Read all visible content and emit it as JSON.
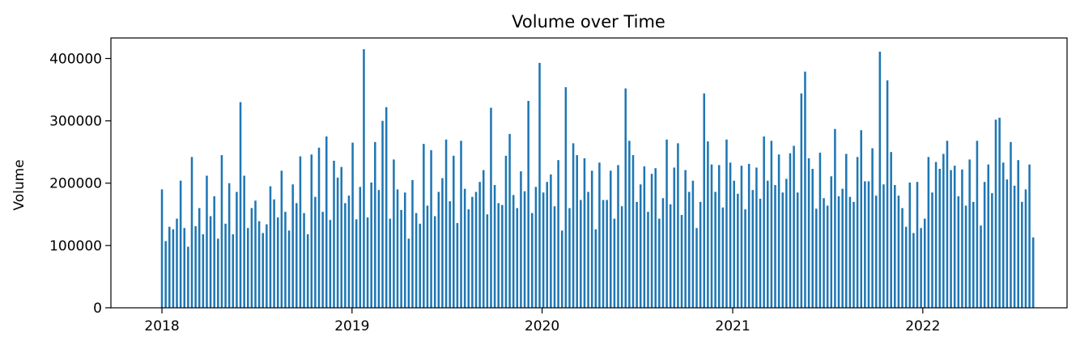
{
  "chart_data": {
    "type": "bar",
    "title": "Volume over Time",
    "xlabel": "",
    "ylabel": "Volume",
    "xlim": [
      "2017-09-25",
      "2022-10-05"
    ],
    "ylim": [
      0,
      433000
    ],
    "grid": false,
    "legend": "none",
    "colors": {
      "bar": "#1f77b4",
      "axis": "#000000",
      "background": "#ffffff"
    },
    "x_ticks": [
      "2018-01-01",
      "2019-01-01",
      "2020-01-01",
      "2021-01-01",
      "2022-01-01"
    ],
    "x_tick_labels": [
      "2018",
      "2019",
      "2020",
      "2021",
      "2022"
    ],
    "y_ticks": [
      0,
      100000,
      200000,
      300000,
      400000
    ],
    "y_tick_labels": [
      "0",
      "100000",
      "200000",
      "300000",
      "400000"
    ],
    "series": [
      {
        "date_range": [
          "2018-01-01",
          "2022-08-01"
        ],
        "frequency": "business day",
        "values": [
          190000,
          107000,
          130000,
          126000,
          143000,
          204000,
          128000,
          98000,
          242000,
          131000,
          160000,
          118000,
          212000,
          147000,
          179000,
          111000,
          245000,
          135000,
          200000,
          118000,
          186000,
          330000,
          212000,
          128000,
          160000,
          172000,
          139000,
          120000,
          134000,
          195000,
          174000,
          145000,
          220000,
          154000,
          124000,
          198000,
          168000,
          243000,
          152000,
          118000,
          246000,
          178000,
          257000,
          154000,
          275000,
          141000,
          236000,
          209000,
          226000,
          168000,
          180000,
          265000,
          142000,
          194000,
          415000,
          145000,
          201000,
          266000,
          189000,
          300000,
          322000,
          143000,
          238000,
          190000,
          157000,
          185000,
          111000,
          205000,
          152000,
          135000,
          263000,
          164000,
          253000,
          147000,
          186000,
          208000,
          270000,
          171000,
          244000,
          136000,
          268000,
          191000,
          158000,
          178000,
          186000,
          202000,
          221000,
          150000,
          321000,
          197000,
          168000,
          165000,
          244000,
          279000,
          181000,
          160000,
          219000,
          187000,
          332000,
          152000,
          194000,
          393000,
          185000,
          202000,
          214000,
          163000,
          237000,
          124000,
          354000,
          160000,
          264000,
          245000,
          173000,
          240000,
          186000,
          220000,
          126000,
          233000,
          173000,
          173000,
          220000,
          143000,
          229000,
          163000,
          352000,
          268000,
          245000,
          170000,
          198000,
          227000,
          154000,
          215000,
          224000,
          143000,
          176000,
          270000,
          166000,
          225000,
          264000,
          149000,
          221000,
          186000,
          204000,
          128000,
          170000,
          344000,
          267000,
          230000,
          186000,
          229000,
          161000,
          270000,
          233000,
          204000,
          183000,
          228000,
          158000,
          231000,
          189000,
          225000,
          175000,
          275000,
          204000,
          268000,
          197000,
          246000,
          185000,
          207000,
          248000,
          260000,
          185000,
          344000,
          379000,
          240000,
          223000,
          159000,
          249000,
          176000,
          164000,
          211000,
          287000,
          179000,
          191000,
          247000,
          178000,
          170000,
          242000,
          285000,
          203000,
          203000,
          256000,
          180000,
          411000,
          198000,
          365000,
          250000,
          197000,
          180000,
          160000,
          130000,
          201000,
          120000,
          202000,
          128000,
          143000,
          242000,
          185000,
          234000,
          223000,
          247000,
          268000,
          221000,
          228000,
          179000,
          222000,
          164000,
          238000,
          170000,
          268000,
          132000,
          202000,
          230000,
          184000,
          302000,
          305000,
          233000,
          206000,
          266000,
          196000,
          237000,
          170000,
          190000,
          230000,
          113000
        ]
      }
    ]
  }
}
